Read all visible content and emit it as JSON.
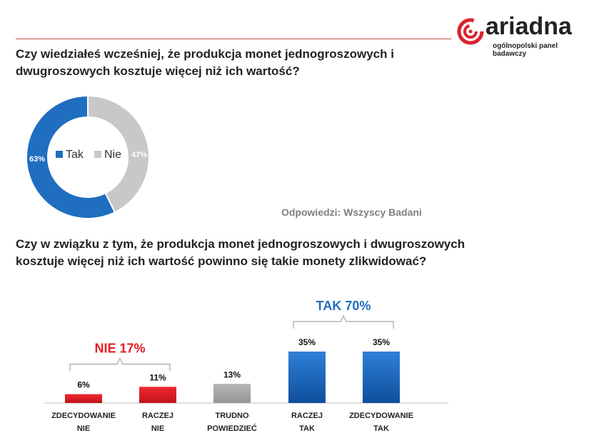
{
  "brand": {
    "name": "ariadna",
    "tagline": "ogólnopolski panel badawczy"
  },
  "question1": "Czy wiedziałeś wcześniej, że produkcja monet jednogroszowych i dwugroszowych kosztuje więcej niż ich wartość?",
  "question2": "Czy w związku z tym, że produkcja monet jednogroszowych i dwugroszowych kosztuje więcej niż ich wartość powinno się takie monety zlikwidować?",
  "respondents": "Odpowiedzi: Wszyscy Badani",
  "colors": {
    "blue": "#1f6ebf",
    "gray": "#c8c8c8",
    "red": "#e31e24",
    "darkgray": "#a6a6a6",
    "tak_label": "#1f6ebf",
    "nie_label": "#e31e24"
  },
  "chart_data": [
    {
      "type": "pie",
      "variant": "donut",
      "categories": [
        "Tak",
        "Nie"
      ],
      "values": [
        63,
        47
      ],
      "labels": [
        "63%",
        "47%"
      ],
      "legend": [
        "Tak",
        "Nie"
      ]
    },
    {
      "type": "bar",
      "categories": [
        "ZDECYDOWANIE NIE",
        "RACZEJ NIE",
        "TRUDNO POWIEDZIEĆ",
        "RACZEJ TAK",
        "ZDECYDOWANIE TAK"
      ],
      "category_lines": [
        [
          "ZDECYDOWANIE",
          "NIE"
        ],
        [
          "RACZEJ",
          "NIE"
        ],
        [
          "TRUDNO",
          "POWIEDZIEĆ"
        ],
        [
          "RACZEJ",
          "TAK"
        ],
        [
          "ZDECYDOWANIE",
          "TAK"
        ]
      ],
      "values": [
        6,
        11,
        13,
        35,
        35
      ],
      "labels": [
        "6%",
        "11%",
        "13%",
        "35%",
        "35%"
      ],
      "groups": [
        {
          "label": "NIE 17%",
          "start": 0,
          "end": 1
        },
        {
          "label": "TAK 70%",
          "start": 3,
          "end": 4
        }
      ],
      "ylim": [
        0,
        40
      ]
    }
  ]
}
